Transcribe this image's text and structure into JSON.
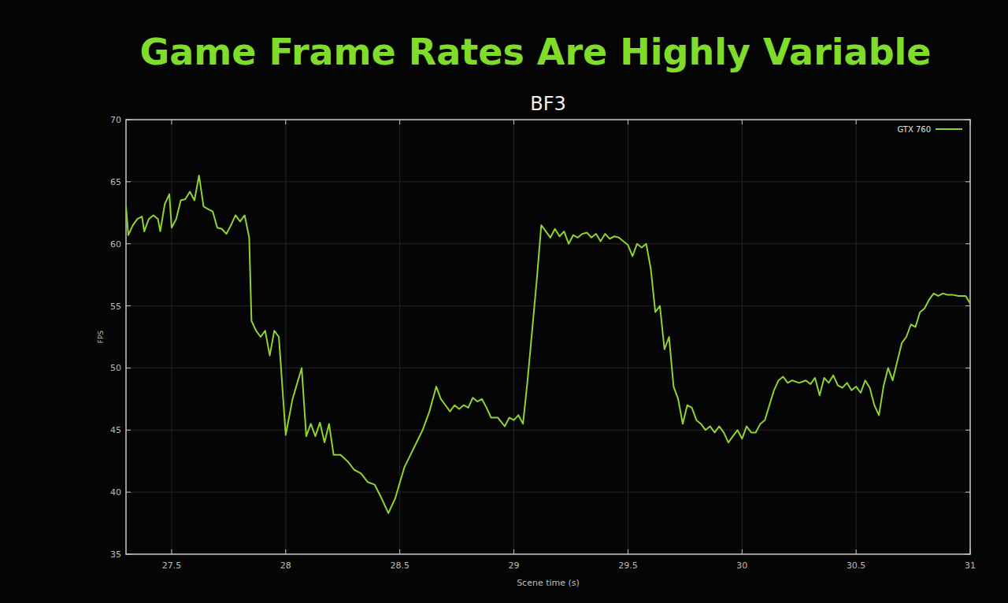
{
  "chart_data": {
    "type": "line",
    "title": "Game Frame Rates Are Highly Variable",
    "subtitle": "BF3",
    "x_label": "Scene time (s)",
    "y_label": "FPS",
    "x": [
      27.3,
      27.31,
      27.33,
      27.35,
      27.37,
      27.38,
      27.4,
      27.42,
      27.44,
      27.45,
      27.47,
      27.49,
      27.5,
      27.52,
      27.54,
      27.56,
      27.58,
      27.6,
      27.62,
      27.64,
      27.66,
      27.68,
      27.7,
      27.72,
      27.74,
      27.76,
      27.78,
      27.8,
      27.82,
      27.84,
      27.85,
      27.87,
      27.89,
      27.91,
      27.93,
      27.95,
      27.97,
      28.0,
      28.03,
      28.07,
      28.09,
      28.11,
      28.13,
      28.15,
      28.17,
      28.19,
      28.21,
      28.24,
      28.27,
      28.3,
      28.33,
      28.36,
      28.39,
      28.42,
      28.45,
      28.48,
      28.52,
      28.56,
      28.6,
      28.63,
      28.66,
      28.68,
      28.7,
      28.72,
      28.74,
      28.76,
      28.78,
      28.8,
      28.82,
      28.84,
      28.86,
      28.88,
      28.9,
      28.93,
      28.96,
      28.98,
      29.0,
      29.02,
      29.04,
      29.06,
      29.08,
      29.1,
      29.12,
      29.14,
      29.16,
      29.18,
      29.2,
      29.22,
      29.24,
      29.26,
      29.28,
      29.3,
      29.32,
      29.34,
      29.36,
      29.38,
      29.4,
      29.42,
      29.44,
      29.46,
      29.48,
      29.5,
      29.52,
      29.54,
      29.56,
      29.58,
      29.6,
      29.62,
      29.64,
      29.66,
      29.68,
      29.7,
      29.72,
      29.74,
      29.76,
      29.78,
      29.8,
      29.82,
      29.84,
      29.86,
      29.88,
      29.9,
      29.92,
      29.94,
      29.96,
      29.98,
      30.0,
      30.02,
      30.04,
      30.06,
      30.08,
      30.1,
      30.12,
      30.14,
      30.16,
      30.18,
      30.2,
      30.22,
      30.25,
      30.28,
      30.3,
      30.32,
      30.34,
      30.36,
      30.38,
      30.4,
      30.42,
      30.44,
      30.46,
      30.48,
      30.5,
      30.52,
      30.54,
      30.56,
      30.58,
      30.6,
      30.62,
      30.64,
      30.66,
      30.68,
      30.7,
      30.72,
      30.74,
      30.76,
      30.78,
      30.8,
      30.82,
      30.84,
      30.86,
      30.88,
      30.9,
      30.92,
      30.95,
      30.98,
      31.0
    ],
    "series": [
      {
        "name": "GTX 760",
        "color": "#8fd332",
        "values": [
          63.0,
          60.7,
          61.5,
          62.0,
          62.2,
          61.0,
          62.0,
          62.3,
          62.0,
          61.0,
          63.2,
          64.0,
          61.3,
          62.0,
          63.5,
          63.6,
          64.2,
          63.5,
          65.5,
          63.0,
          62.8,
          62.6,
          61.3,
          61.2,
          60.8,
          61.5,
          62.3,
          61.8,
          62.3,
          60.5,
          53.8,
          53.0,
          52.5,
          53.0,
          51.0,
          53.0,
          52.5,
          44.6,
          47.5,
          50.0,
          44.5,
          45.5,
          44.5,
          45.6,
          44.0,
          45.5,
          43.0,
          43.0,
          42.5,
          41.8,
          41.5,
          40.8,
          40.6,
          39.5,
          38.3,
          39.5,
          42.0,
          43.5,
          45.0,
          46.5,
          48.5,
          47.5,
          47.0,
          46.5,
          47.0,
          46.7,
          47.0,
          46.8,
          47.6,
          47.3,
          47.5,
          46.8,
          46.0,
          46.0,
          45.3,
          46.0,
          45.8,
          46.2,
          45.5,
          49.0,
          53.0,
          57.0,
          61.5,
          61.0,
          60.5,
          61.2,
          60.6,
          61.0,
          60.0,
          60.7,
          60.5,
          60.8,
          60.9,
          60.5,
          60.8,
          60.2,
          60.8,
          60.4,
          60.6,
          60.5,
          60.2,
          59.9,
          59.0,
          60.0,
          59.7,
          60.0,
          58.0,
          54.5,
          55.0,
          51.5,
          52.5,
          48.5,
          47.5,
          45.5,
          47.0,
          46.8,
          45.8,
          45.5,
          45.0,
          45.3,
          44.8,
          45.3,
          44.8,
          44.0,
          44.5,
          45.0,
          44.3,
          45.3,
          44.8,
          44.8,
          45.5,
          45.8,
          47.0,
          48.2,
          49.0,
          49.3,
          48.8,
          49.0,
          48.8,
          49.0,
          48.7,
          49.2,
          47.8,
          49.2,
          48.8,
          49.4,
          48.6,
          48.4,
          48.8,
          48.2,
          48.5,
          48.0,
          49.0,
          48.4,
          47.0,
          46.2,
          48.5,
          50.0,
          49.0,
          50.5,
          52.0,
          52.5,
          53.5,
          53.3,
          54.5,
          54.8,
          55.5,
          56.0,
          55.8,
          56.0,
          55.9,
          55.9,
          55.8,
          55.8,
          55.2
        ]
      }
    ],
    "xlim": [
      27.3,
      31
    ],
    "ylim": [
      35,
      70
    ],
    "xticks": [
      27.5,
      28,
      28.5,
      29,
      29.5,
      30,
      30.5,
      31
    ],
    "yticks": [
      35,
      40,
      45,
      50,
      55,
      60,
      65,
      70
    ],
    "grid": true,
    "legend": "upper right"
  }
}
